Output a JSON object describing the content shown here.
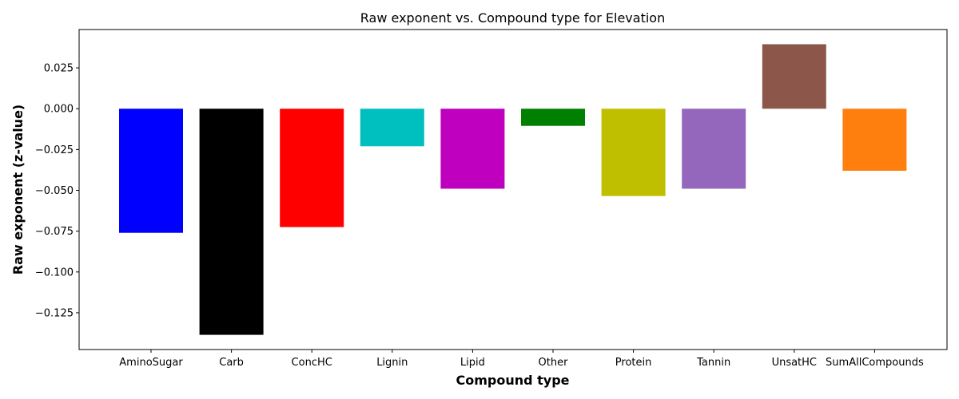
{
  "chart_data": {
    "type": "bar",
    "title": "Raw exponent vs. Compound type for Elevation",
    "xlabel": "Compound type",
    "ylabel": "Raw exponent (z-value)",
    "categories": [
      "AminoSugar",
      "Carb",
      "ConcHC",
      "Lignin",
      "Lipid",
      "Other",
      "Protein",
      "Tannin",
      "UnsatHC",
      "SumAllCompounds"
    ],
    "values": [
      -0.076,
      -0.1385,
      -0.0725,
      -0.023,
      -0.049,
      -0.0105,
      -0.0535,
      -0.049,
      0.0395,
      -0.038
    ],
    "colors": [
      "#0000ff",
      "#000000",
      "#ff0000",
      "#00bfbf",
      "#bf00bf",
      "#008000",
      "#bfbf00",
      "#9467bd",
      "#8c564b",
      "#ff7f0e"
    ],
    "ylim": [
      -0.1475,
      0.0485
    ],
    "yticks": [
      -0.125,
      -0.1,
      -0.075,
      -0.05,
      -0.025,
      0.0,
      0.025
    ],
    "ytick_labels": [
      "−0.125",
      "−0.100",
      "−0.075",
      "−0.050",
      "−0.025",
      "0.000",
      "0.025"
    ],
    "grid": false,
    "legend": "none"
  }
}
